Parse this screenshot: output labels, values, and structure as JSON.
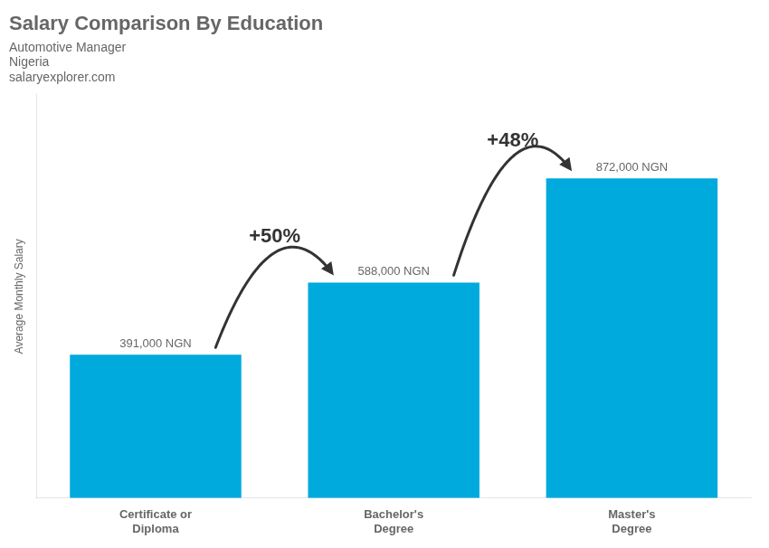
{
  "chart_data": {
    "type": "bar",
    "title": "Salary Comparison By Education",
    "subtitle": "Automotive Manager",
    "ylabel": "Average Monthly Salary",
    "categories": [
      "Certificate or\nDiploma",
      "Bachelor's\nDegree",
      "Master's\nDegree"
    ],
    "values": [
      391000,
      588000,
      872000
    ],
    "value_labels": [
      "391,000 NGN",
      "588,000 NGN",
      "872,000 NGN"
    ],
    "data_labels": true,
    "color": "#00aadd",
    "ylim": [
      0,
      1100000
    ],
    "grid": false,
    "tick_labels": "x",
    "annotations": [
      {
        "text": "Nigeria"
      },
      {
        "text": "salaryexplorer.com"
      },
      {
        "text": "+50%",
        "between": [
          "Certificate or\nDiploma",
          "Bachelor's\nDegree"
        ]
      },
      {
        "text": "+48%",
        "between": [
          "Bachelor's\nDegree",
          "Master's\nDegree"
        ]
      }
    ]
  }
}
